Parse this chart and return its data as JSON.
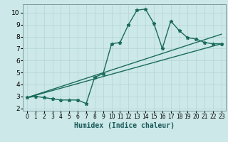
{
  "title": "",
  "xlabel": "Humidex (Indice chaleur)",
  "bg_color": "#cce8e8",
  "grid_color": "#b8d8d8",
  "line_color": "#1a6b5a",
  "spine_color": "#7a9a9a",
  "xlim": [
    -0.5,
    23.5
  ],
  "ylim": [
    1.8,
    10.7
  ],
  "xticks": [
    0,
    1,
    2,
    3,
    4,
    5,
    6,
    7,
    8,
    9,
    10,
    11,
    12,
    13,
    14,
    15,
    16,
    17,
    18,
    19,
    20,
    21,
    22,
    23
  ],
  "yticks": [
    2,
    3,
    4,
    5,
    6,
    7,
    8,
    9,
    10
  ],
  "series1_x": [
    0,
    1,
    2,
    3,
    4,
    5,
    6,
    7,
    8,
    9,
    10,
    11,
    12,
    13,
    14,
    15,
    16,
    17,
    18,
    19,
    20,
    21,
    22,
    23
  ],
  "series1_y": [
    2.9,
    3.0,
    2.9,
    2.8,
    2.7,
    2.7,
    2.7,
    2.4,
    4.6,
    4.9,
    7.4,
    7.5,
    9.0,
    10.2,
    10.3,
    9.1,
    7.0,
    9.3,
    8.5,
    7.9,
    7.8,
    7.5,
    7.4,
    7.4
  ],
  "series2_x": [
    0,
    23
  ],
  "series2_y": [
    2.9,
    7.4
  ],
  "series3_x": [
    0,
    23
  ],
  "series3_y": [
    2.9,
    8.2
  ],
  "marker_size": 3.5,
  "line_width": 1.0,
  "xlabel_fontsize": 7,
  "xlabel_color": "#1a5a5a",
  "tick_fontsize_x": 5.5,
  "tick_fontsize_y": 6.5
}
